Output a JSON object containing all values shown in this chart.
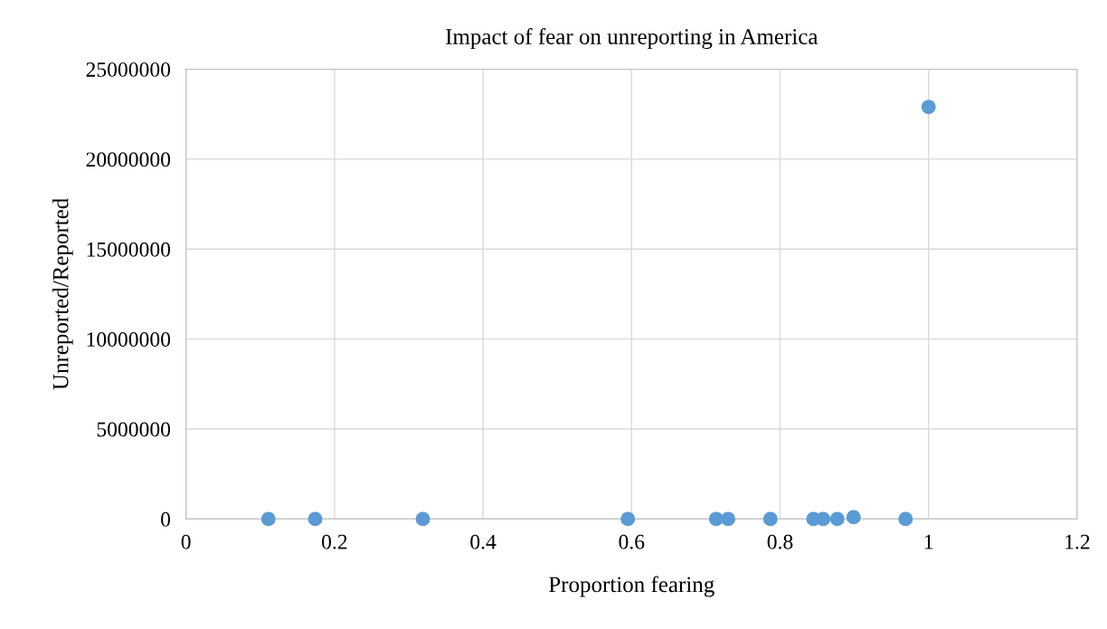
{
  "chart_data": {
    "type": "scatter",
    "title": "Impact of fear on unreporting in America",
    "xlabel": "Proportion fearing",
    "ylabel": "Unreported/Reported",
    "x": [
      0.111,
      0.174,
      0.319,
      0.595,
      0.714,
      0.73,
      0.787,
      0.845,
      0.858,
      0.877,
      0.899,
      0.969,
      1.0
    ],
    "series": [
      {
        "color": "#5b9bd5",
        "values": [
          0,
          0,
          0,
          0,
          0,
          0,
          0,
          0,
          0,
          0,
          100000,
          0,
          22900000
        ]
      }
    ],
    "xlim": [
      0,
      1.2
    ],
    "xticks": [
      0,
      0.2,
      0.4,
      0.6,
      0.8,
      1,
      1.2
    ],
    "ylim": [
      0,
      25000000
    ],
    "yticks": [
      0,
      5000000,
      10000000,
      15000000,
      20000000,
      25000000
    ],
    "grid": true,
    "marker": "circle"
  }
}
